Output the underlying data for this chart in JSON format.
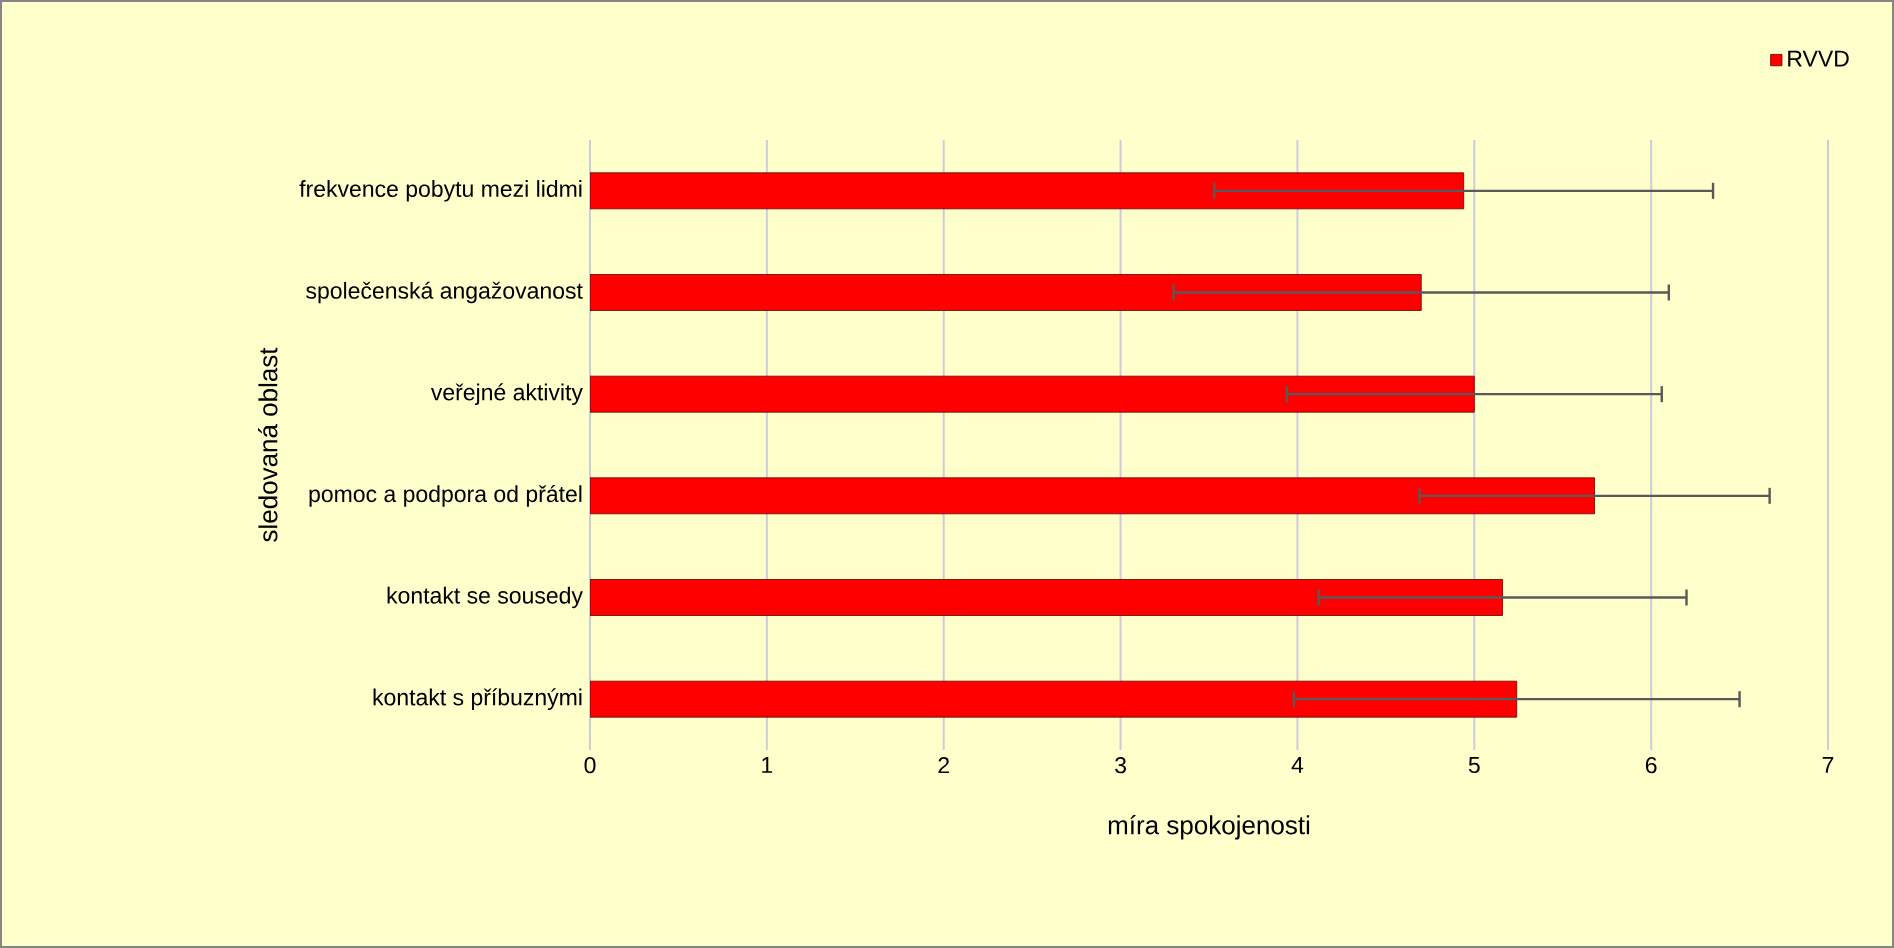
{
  "chart_data": {
    "type": "bar",
    "orientation": "horizontal",
    "xlabel": "míra spokojenosti",
    "ylabel": "sledovaná oblast",
    "categories": [
      "frekvence pobytu mezi lidmi",
      "společenská angažovanost",
      "veřejné aktivity",
      "pomoc a podpora od přátel",
      "kontakt se sousedy",
      "kontakt s příbuznými"
    ],
    "series": [
      {
        "name": "RVVD",
        "color": "#ff0000",
        "values": [
          4.94,
          4.7,
          5.0,
          5.68,
          5.16,
          5.24
        ],
        "errors": [
          1.41,
          1.4,
          1.06,
          0.99,
          1.04,
          1.26
        ]
      }
    ],
    "xlim": [
      0,
      7
    ],
    "xticks": [
      0,
      1,
      2,
      3,
      4,
      5,
      6,
      7
    ],
    "grid": "x",
    "legend": "top right"
  }
}
